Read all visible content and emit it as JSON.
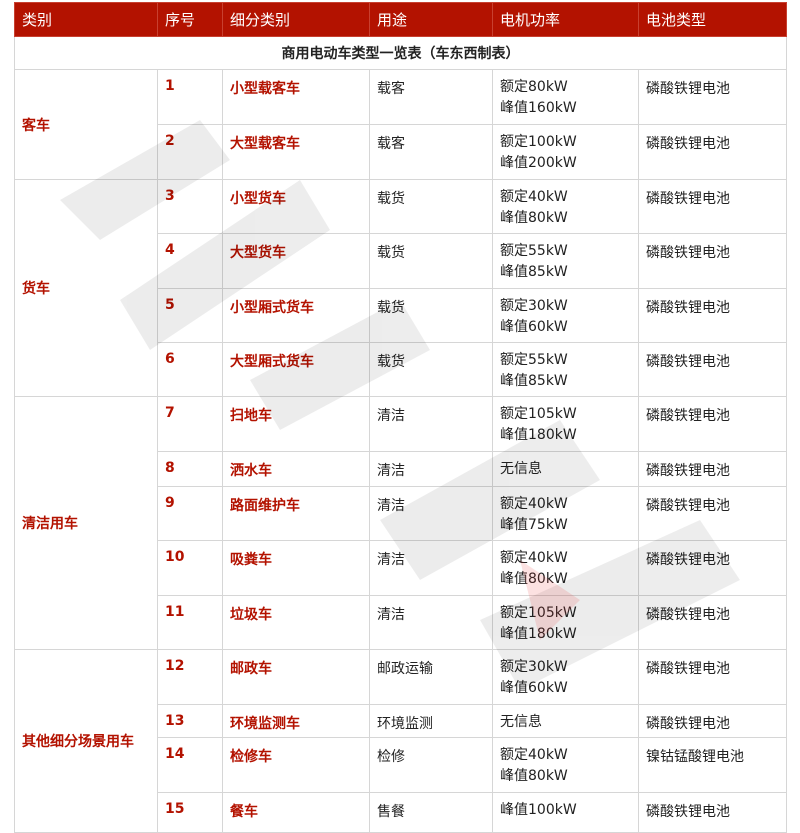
{
  "title": "商用电动车类型一览表（车东西制表）",
  "headers": [
    "类别",
    "序号",
    "细分类别",
    "用途",
    "电机功率",
    "电池类型"
  ],
  "groups": [
    {
      "category": "客车",
      "rows": [
        {
          "no": "1",
          "sub": "小型载客车",
          "use": "载客",
          "power": [
            "额定80kW",
            "峰值160kW"
          ],
          "battery": "磷酸铁锂电池"
        },
        {
          "no": "2",
          "sub": "大型载客车",
          "use": "载客",
          "power": [
            "额定100kW",
            "峰值200kW"
          ],
          "battery": "磷酸铁锂电池"
        }
      ]
    },
    {
      "category": "货车",
      "rows": [
        {
          "no": "3",
          "sub": "小型货车",
          "use": "载货",
          "power": [
            "额定40kW",
            "峰值80kW"
          ],
          "battery": "磷酸铁锂电池"
        },
        {
          "no": "4",
          "sub": "大型货车",
          "use": "载货",
          "power": [
            "额定55kW",
            "峰值85kW"
          ],
          "battery": "磷酸铁锂电池"
        },
        {
          "no": "5",
          "sub": "小型厢式货车",
          "use": "载货",
          "power": [
            "额定30kW",
            "峰值60kW"
          ],
          "battery": "磷酸铁锂电池"
        },
        {
          "no": "6",
          "sub": "大型厢式货车",
          "use": "载货",
          "power": [
            "额定55kW",
            "峰值85kW"
          ],
          "battery": "磷酸铁锂电池"
        }
      ]
    },
    {
      "category": "清洁用车",
      "rows": [
        {
          "no": "7",
          "sub": "扫地车",
          "use": "清洁",
          "power": [
            "额定105kW",
            "峰值180kW"
          ],
          "battery": "磷酸铁锂电池"
        },
        {
          "no": "8",
          "sub": "洒水车",
          "use": "清洁",
          "power": [
            "无信息"
          ],
          "battery": "磷酸铁锂电池"
        },
        {
          "no": "9",
          "sub": "路面维护车",
          "use": "清洁",
          "power": [
            "额定40kW",
            "峰值75kW"
          ],
          "battery": "磷酸铁锂电池"
        },
        {
          "no": "10",
          "sub": "吸粪车",
          "use": "清洁",
          "power": [
            "额定40kW",
            "峰值80kW"
          ],
          "battery": "磷酸铁锂电池"
        },
        {
          "no": "11",
          "sub": "垃圾车",
          "use": "清洁",
          "power": [
            "额定105kW",
            "峰值180kW"
          ],
          "battery": "磷酸铁锂电池"
        }
      ]
    },
    {
      "category": "其他细分场景用车",
      "rows": [
        {
          "no": "12",
          "sub": "邮政车",
          "use": "邮政运输",
          "power": [
            "额定30kW",
            "峰值60kW"
          ],
          "battery": "磷酸铁锂电池"
        },
        {
          "no": "13",
          "sub": "环境监测车",
          "use": "环境监测",
          "power": [
            "无信息"
          ],
          "battery": "磷酸铁锂电池"
        },
        {
          "no": "14",
          "sub": "检修车",
          "use": "检修",
          "power": [
            "额定40kW",
            "峰值80kW"
          ],
          "battery": "镍钴锰酸锂电池"
        },
        {
          "no": "15",
          "sub": "餐车",
          "use": "售餐",
          "power": [
            "峰值100kW"
          ],
          "battery": "磷酸铁锂电池"
        }
      ]
    }
  ],
  "colors": {
    "header_bg": "#b31200",
    "accent_text": "#b31200"
  }
}
